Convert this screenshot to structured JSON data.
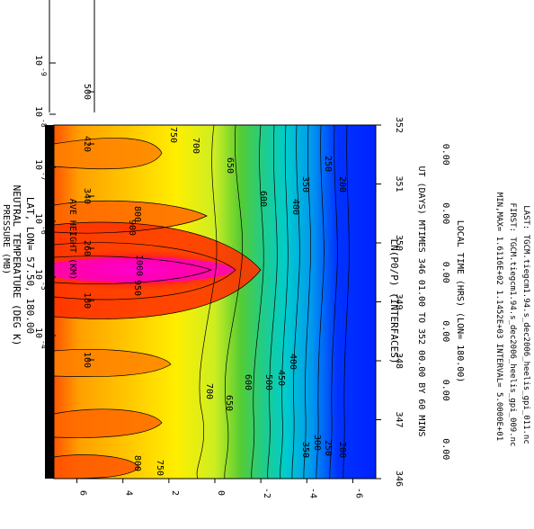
{
  "chart_data": {
    "type": "heatmap",
    "title": "NEUTRAL TEMPERATURE (DEG K)",
    "subtitle": "LAT, LON= 57.50, 180.00",
    "xlabel": "UT (DAYS) MTIMES 346 01.00 TO 352 00.00 BY 60 MINS",
    "x2label": "LOCAL TIME (HRS) (LON= 180.00)",
    "ylabel": "LN(P0/P) (INTERFACES)",
    "top_axis1_label": "AVE HEIGHT (KM)",
    "top_axis2_label": "PRESSURE (MB)",
    "xlim": [
      346.0,
      352.0
    ],
    "ylim": [
      -7,
      7
    ],
    "x_ticks": [
      "346",
      "347",
      "348",
      "349",
      "350",
      "351",
      "352"
    ],
    "y_ticks": [
      "6",
      "4",
      "2",
      "0",
      "-2",
      "-4",
      "-6"
    ],
    "local_time_labels": [
      "0.00",
      "0.00",
      "0.00",
      "0.00",
      "0.00",
      "0.00"
    ],
    "height_ticks": [
      "500",
      "420",
      "340",
      "260",
      "180",
      "100"
    ],
    "pressure_ticks": [
      "10",
      "10",
      "10",
      "10",
      "10",
      "10"
    ],
    "pressure_exponents": [
      "-9",
      "-8",
      "-7",
      "-6",
      "-5",
      "-4"
    ],
    "contour_interval": 50,
    "min": 161.16,
    "max": 1145.2,
    "contour_labels": [
      "200",
      "250",
      "300",
      "350",
      "400",
      "450",
      "500",
      "600",
      "650",
      "700",
      "750",
      "800",
      "900",
      "950",
      "1000"
    ],
    "footer": {
      "minmax": "MIN,MAX=  1.6116E+02  1.1452E+03 INTERVAL=  5.0000E+01",
      "first": "FIRST: TGCM.tiegcm1.94.s_dec2006_heelis_gpi_009.nc",
      "last": "LAST: TGCM.tiegcm1.94.s_dec2006_heelis_gpi_011.nc"
    }
  }
}
